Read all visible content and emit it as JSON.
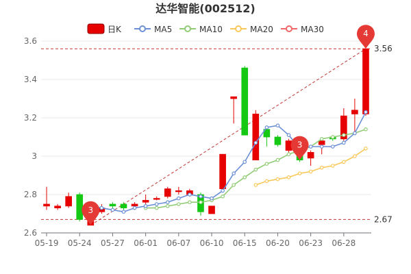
{
  "chart_data": {
    "type": "candlestick",
    "title": "达华智能(002512)",
    "legend": {
      "placement": "top-center",
      "items": [
        {
          "key": "k",
          "label": "日K",
          "color": "#e60000"
        },
        {
          "key": "ma5",
          "label": "MA5",
          "color": "#6b8fd6"
        },
        {
          "key": "ma10",
          "label": "MA10",
          "color": "#91cc75"
        },
        {
          "key": "ma20",
          "label": "MA20",
          "color": "#fac858"
        },
        {
          "key": "ma30",
          "label": "MA30",
          "color": "#ee6666"
        }
      ]
    },
    "x_ticks": [
      "05-19",
      "05-24",
      "05-27",
      "06-01",
      "06-07",
      "06-10",
      "06-15",
      "06-20",
      "06-23",
      "06-28"
    ],
    "ylim": [
      2.6,
      3.6
    ],
    "y_ticks": [
      "2.6",
      "2.8",
      "3",
      "3.2",
      "3.4",
      "3.6"
    ],
    "candles": [
      {
        "o": 2.74,
        "c": 2.75,
        "h": 2.84,
        "l": 2.72
      },
      {
        "o": 2.73,
        "c": 2.74,
        "h": 2.75,
        "l": 2.72
      },
      {
        "o": 2.74,
        "c": 2.79,
        "h": 2.81,
        "l": 2.73
      },
      {
        "o": 2.8,
        "c": 2.67,
        "h": 2.81,
        "l": 2.66
      },
      {
        "o": 2.64,
        "c": 2.7,
        "h": 2.72,
        "l": 2.64
      },
      {
        "o": 2.71,
        "c": 2.73,
        "h": 2.75,
        "l": 2.7
      },
      {
        "o": 2.75,
        "c": 2.74,
        "h": 2.76,
        "l": 2.72
      },
      {
        "o": 2.75,
        "c": 2.73,
        "h": 2.76,
        "l": 2.72
      },
      {
        "o": 2.74,
        "c": 2.75,
        "h": 2.76,
        "l": 2.72
      },
      {
        "o": 2.76,
        "c": 2.77,
        "h": 2.8,
        "l": 2.75
      },
      {
        "o": 2.78,
        "c": 2.78,
        "h": 2.79,
        "l": 2.77
      },
      {
        "o": 2.79,
        "c": 2.83,
        "h": 2.84,
        "l": 2.78
      },
      {
        "o": 2.82,
        "c": 2.82,
        "h": 2.84,
        "l": 2.8
      },
      {
        "o": 2.8,
        "c": 2.82,
        "h": 2.83,
        "l": 2.79
      },
      {
        "o": 2.8,
        "c": 2.71,
        "h": 2.81,
        "l": 2.69
      },
      {
        "o": 2.7,
        "c": 2.74,
        "h": 2.74,
        "l": 2.7
      },
      {
        "o": 2.83,
        "c": 3.01,
        "h": 3.01,
        "l": 2.82
      },
      {
        "o": 3.3,
        "c": 3.31,
        "h": 3.31,
        "l": 3.17
      },
      {
        "o": 3.46,
        "c": 3.11,
        "h": 3.47,
        "l": 3.11
      },
      {
        "o": 2.98,
        "c": 3.22,
        "h": 3.24,
        "l": 2.98
      },
      {
        "o": 3.14,
        "c": 3.1,
        "h": 3.16,
        "l": 3.05
      },
      {
        "o": 3.1,
        "c": 3.06,
        "h": 3.11,
        "l": 3.05
      },
      {
        "o": 3.03,
        "c": 3.08,
        "h": 3.09,
        "l": 3.02
      },
      {
        "o": 3.02,
        "c": 2.98,
        "h": 3.03,
        "l": 2.97
      },
      {
        "o": 2.99,
        "c": 3.02,
        "h": 3.03,
        "l": 2.95
      },
      {
        "o": 3.06,
        "c": 3.08,
        "h": 3.09,
        "l": 3.01
      },
      {
        "o": 3.1,
        "c": 3.09,
        "h": 3.11,
        "l": 3.08
      },
      {
        "o": 3.09,
        "c": 3.21,
        "h": 3.25,
        "l": 3.08
      },
      {
        "o": 3.22,
        "c": 3.24,
        "h": 3.3,
        "l": 3.13
      },
      {
        "o": 3.22,
        "c": 3.56,
        "h": 3.56,
        "l": 3.21
      }
    ],
    "ma5": [
      null,
      null,
      null,
      null,
      2.74,
      2.73,
      2.72,
      2.71,
      2.73,
      2.74,
      2.75,
      2.76,
      2.78,
      2.8,
      2.79,
      2.78,
      2.82,
      2.91,
      2.97,
      3.07,
      3.15,
      3.16,
      3.11,
      3.04,
      3.05,
      3.05,
      3.05,
      3.07,
      3.12,
      3.23
    ],
    "ma10": [
      null,
      null,
      null,
      null,
      null,
      null,
      null,
      null,
      null,
      2.73,
      2.73,
      2.74,
      2.75,
      2.76,
      2.76,
      2.77,
      2.79,
      2.85,
      2.89,
      2.93,
      2.96,
      2.98,
      3.01,
      3.03,
      3.05,
      3.09,
      3.1,
      3.11,
      3.12,
      3.14
    ],
    "ma20": [
      null,
      null,
      null,
      null,
      null,
      null,
      null,
      null,
      null,
      null,
      null,
      null,
      null,
      null,
      null,
      null,
      null,
      null,
      null,
      2.85,
      2.87,
      2.88,
      2.89,
      2.91,
      2.92,
      2.94,
      2.95,
      2.97,
      3.0,
      3.04
    ],
    "ma30": [],
    "max_line": {
      "value": 3.56,
      "label": "3.56"
    },
    "min_line": {
      "value": 2.67,
      "label": "2.67"
    },
    "markers": [
      {
        "index": 4,
        "value": 2.64,
        "label": "3",
        "color": "#e53935"
      },
      {
        "index": 23,
        "value": 2.98,
        "label": "3",
        "color": "#e53935"
      },
      {
        "index": 29,
        "value": 3.56,
        "label": "4",
        "color": "#e53935"
      }
    ],
    "up_color": "#e60000",
    "down_color": "#14c814",
    "grid": true
  }
}
